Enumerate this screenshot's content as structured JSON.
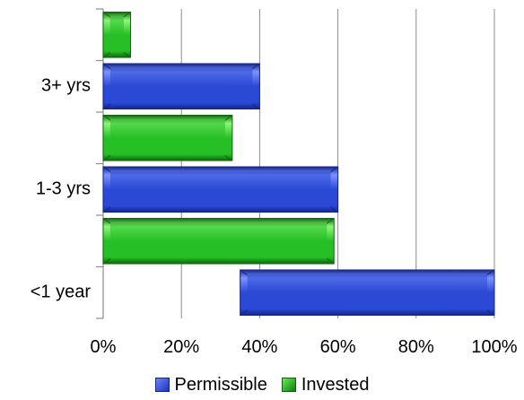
{
  "chart_data": {
    "type": "bar",
    "orientation": "horizontal",
    "categories": [
      "3+ yrs",
      "1-3 yrs",
      "<1 year"
    ],
    "series": [
      {
        "name": "Permissible",
        "color": "#2a49d6",
        "bars": [
          {
            "start": 0,
            "end": 40
          },
          {
            "start": 0,
            "end": 60
          },
          {
            "start": 35,
            "end": 100
          }
        ]
      },
      {
        "name": "Invested",
        "color": "#22bb22",
        "bars": [
          {
            "start": 0,
            "end": 7
          },
          {
            "start": 0,
            "end": 33
          },
          {
            "start": 0,
            "end": 59
          }
        ]
      }
    ],
    "xticks": [
      "0%",
      "20%",
      "40%",
      "60%",
      "80%",
      "100%"
    ],
    "xlim": [
      0,
      100
    ],
    "grid": true,
    "legend": "bottom"
  }
}
